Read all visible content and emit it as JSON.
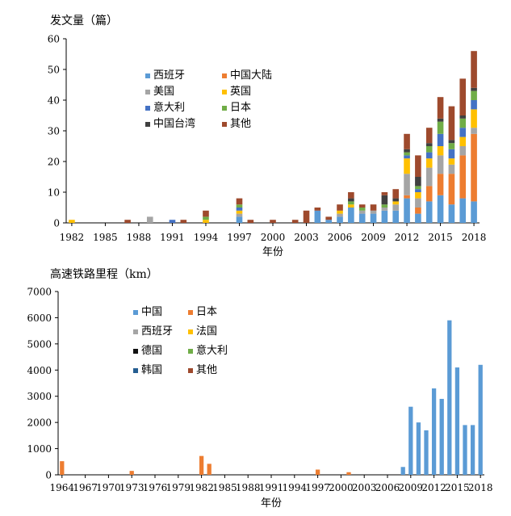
{
  "chart_data": [
    {
      "type": "bar",
      "title": "发文量（篇）",
      "xlabel": "年份",
      "ylabel": "发文量（篇）",
      "ylim": [
        0,
        60
      ],
      "yticks": [
        0,
        10,
        20,
        30,
        40,
        50,
        60
      ],
      "xtick_labels": [
        "1982",
        "1985",
        "1988",
        "1991",
        "1994",
        "1997",
        "2000",
        "2003",
        "2006",
        "2009",
        "2012",
        "2015",
        "2018"
      ],
      "legend_position": "top-center",
      "colors": {
        "西班牙": "#5b9bd5",
        "中国大陆": "#ed7d31",
        "美国": "#a5a5a5",
        "英国": "#ffc000",
        "意大利": "#4472c4",
        "日本": "#70ad47",
        "中国台湾": "#404040",
        "其他": "#9e4a2d"
      },
      "categories": [
        "1982",
        "1983",
        "1984",
        "1985",
        "1986",
        "1987",
        "1988",
        "1989",
        "1990",
        "1991",
        "1992",
        "1993",
        "1994",
        "1995",
        "1996",
        "1997",
        "1998",
        "1999",
        "2000",
        "2001",
        "2002",
        "2003",
        "2004",
        "2005",
        "2006",
        "2007",
        "2008",
        "2009",
        "2010",
        "2011",
        "2012",
        "2013",
        "2014",
        "2015",
        "2016",
        "2017",
        "2018"
      ],
      "series": [
        {
          "name": "西班牙",
          "values": [
            0,
            0,
            0,
            0,
            0,
            0,
            0,
            0,
            0,
            0,
            0,
            0,
            0,
            0,
            0,
            2,
            0,
            0,
            0,
            0,
            0,
            0,
            4,
            1,
            2,
            5,
            3,
            3,
            4,
            4,
            8,
            3,
            7,
            9,
            6,
            8,
            7
          ]
        },
        {
          "name": "中国大陆",
          "values": [
            0,
            0,
            0,
            0,
            0,
            0,
            0,
            0,
            0,
            0,
            0,
            0,
            0,
            0,
            0,
            0,
            0,
            0,
            0,
            0,
            0,
            0,
            0,
            0,
            0,
            0,
            0,
            0,
            0,
            0,
            1,
            2,
            5,
            7,
            10,
            14,
            22
          ]
        },
        {
          "name": "美国",
          "values": [
            0,
            0,
            0,
            0,
            0,
            0,
            0,
            2,
            0,
            0,
            0,
            0,
            0,
            0,
            0,
            1,
            0,
            0,
            0,
            0,
            0,
            0,
            0,
            0,
            1,
            0,
            1,
            1,
            1,
            2,
            7,
            3,
            6,
            6,
            3,
            3,
            2
          ]
        },
        {
          "name": "英国",
          "values": [
            1,
            0,
            0,
            0,
            0,
            0,
            0,
            0,
            0,
            0,
            0,
            0,
            1,
            0,
            0,
            1,
            0,
            0,
            0,
            0,
            0,
            0,
            0,
            0,
            1,
            1,
            0,
            0,
            0,
            1,
            5,
            2,
            3,
            3,
            2,
            3,
            6
          ]
        },
        {
          "name": "意大利",
          "values": [
            0,
            0,
            0,
            0,
            0,
            0,
            0,
            0,
            0,
            1,
            0,
            0,
            0,
            0,
            0,
            1,
            0,
            0,
            0,
            0,
            0,
            0,
            0,
            0,
            0,
            0,
            0,
            0,
            0,
            0,
            1,
            1,
            2,
            4,
            3,
            3,
            3
          ]
        },
        {
          "name": "日本",
          "values": [
            0,
            0,
            0,
            0,
            0,
            0,
            0,
            0,
            0,
            0,
            0,
            0,
            1,
            0,
            0,
            1,
            0,
            0,
            0,
            0,
            0,
            0,
            0,
            0,
            0,
            1,
            1,
            0,
            1,
            0,
            1,
            1,
            2,
            4,
            2,
            3,
            3
          ]
        },
        {
          "name": "中国台湾",
          "values": [
            0,
            0,
            0,
            0,
            0,
            0,
            0,
            0,
            0,
            0,
            0,
            0,
            0,
            0,
            0,
            0,
            0,
            0,
            0,
            0,
            0,
            0,
            0,
            0,
            0,
            1,
            0,
            0,
            3,
            1,
            1,
            3,
            1,
            1,
            1,
            1,
            1
          ]
        },
        {
          "name": "其他",
          "values": [
            0,
            0,
            0,
            0,
            0,
            1,
            0,
            0,
            0,
            0,
            1,
            0,
            2,
            0,
            0,
            2,
            1,
            0,
            1,
            0,
            1,
            4,
            1,
            1,
            2,
            2,
            1,
            2,
            1,
            3,
            5,
            7,
            5,
            7,
            11,
            12,
            12
          ]
        }
      ]
    },
    {
      "type": "bar",
      "title": "高速铁路里程（km）",
      "xlabel": "年份",
      "ylabel": "高速铁路里程（km）",
      "ylim": [
        0,
        7000
      ],
      "yticks": [
        0,
        1000,
        2000,
        3000,
        4000,
        5000,
        6000,
        7000
      ],
      "xtick_labels": [
        "1964",
        "1967",
        "1970",
        "1973",
        "1976",
        "1979",
        "1982",
        "1985",
        "1988",
        "1991",
        "1994",
        "1997",
        "2000",
        "2003",
        "2006",
        "2009",
        "2012",
        "2015",
        "2018"
      ],
      "legend_position": "top-center",
      "colors": {
        "中国": "#5b9bd5",
        "日本": "#ed7d31",
        "西班牙": "#a5a5a5",
        "法国": "#ffc000",
        "德国": "#111111",
        "意大利": "#70ad47",
        "韩国": "#255e91",
        "其他": "#9e4a2d"
      },
      "categories": [
        "1964",
        "1965",
        "1966",
        "1967",
        "1968",
        "1969",
        "1970",
        "1971",
        "1972",
        "1973",
        "1974",
        "1975",
        "1976",
        "1977",
        "1978",
        "1979",
        "1980",
        "1981",
        "1982",
        "1983",
        "1984",
        "1985",
        "1986",
        "1987",
        "1988",
        "1989",
        "1990",
        "1991",
        "1992",
        "1993",
        "1994",
        "1995",
        "1996",
        "1997",
        "1998",
        "1999",
        "2000",
        "2001",
        "2002",
        "2003",
        "2004",
        "2005",
        "2006",
        "2007",
        "2008",
        "2009",
        "2010",
        "2011",
        "2012",
        "2013",
        "2014",
        "2015",
        "2016",
        "2017",
        "2018"
      ],
      "series": [
        {
          "name": "中国",
          "values": [
            0,
            0,
            0,
            0,
            0,
            0,
            0,
            0,
            0,
            0,
            0,
            0,
            0,
            0,
            0,
            0,
            0,
            0,
            0,
            0,
            0,
            0,
            0,
            0,
            0,
            0,
            0,
            0,
            0,
            0,
            0,
            0,
            0,
            0,
            0,
            0,
            0,
            0,
            0,
            0,
            0,
            0,
            0,
            0,
            300,
            2600,
            2000,
            1700,
            3300,
            2900,
            5900,
            4100,
            1900,
            1900,
            4200
          ]
        },
        {
          "name": "日本",
          "values": [
            520,
            0,
            0,
            0,
            0,
            0,
            0,
            0,
            0,
            150,
            0,
            0,
            0,
            0,
            0,
            0,
            0,
            0,
            720,
            420,
            0,
            0,
            0,
            0,
            0,
            0,
            0,
            0,
            0,
            0,
            0,
            0,
            0,
            200,
            0,
            0,
            0,
            100,
            0,
            0,
            0,
            0,
            0,
            0,
            0,
            0,
            0,
            0,
            0,
            0,
            0,
            0,
            0,
            0,
            0
          ]
        },
        {
          "name": "西班牙",
          "values": [
            0,
            0,
            0,
            0,
            0,
            0,
            0,
            0,
            0,
            0,
            0,
            0,
            0,
            0,
            0,
            0,
            0,
            0,
            0,
            0,
            0,
            0,
            0,
            0,
            0,
            0,
            0,
            0,
            0,
            0,
            0,
            0,
            0,
            0,
            0,
            0,
            0,
            0,
            0,
            0,
            0,
            0,
            0,
            0,
            0,
            0,
            0,
            0,
            0,
            0,
            0,
            0,
            0,
            0,
            0
          ]
        },
        {
          "name": "法国",
          "values": [
            0,
            0,
            0,
            0,
            0,
            0,
            0,
            0,
            0,
            0,
            0,
            0,
            0,
            0,
            0,
            0,
            0,
            0,
            0,
            0,
            0,
            0,
            0,
            0,
            0,
            0,
            0,
            0,
            0,
            0,
            0,
            0,
            0,
            0,
            0,
            0,
            0,
            0,
            0,
            0,
            0,
            0,
            0,
            0,
            0,
            0,
            0,
            0,
            0,
            0,
            0,
            0,
            0,
            0,
            0
          ]
        },
        {
          "name": "德国",
          "values": [
            0,
            0,
            0,
            0,
            0,
            0,
            0,
            0,
            0,
            0,
            0,
            0,
            0,
            0,
            0,
            0,
            0,
            0,
            0,
            0,
            0,
            0,
            0,
            0,
            0,
            0,
            0,
            0,
            0,
            0,
            0,
            0,
            0,
            0,
            0,
            0,
            0,
            0,
            0,
            0,
            0,
            0,
            0,
            0,
            0,
            0,
            0,
            0,
            0,
            0,
            0,
            0,
            0,
            0,
            0
          ]
        },
        {
          "name": "意大利",
          "values": [
            0,
            0,
            0,
            0,
            0,
            0,
            0,
            0,
            0,
            0,
            0,
            0,
            0,
            0,
            0,
            0,
            0,
            0,
            0,
            0,
            0,
            0,
            0,
            0,
            0,
            0,
            0,
            0,
            0,
            0,
            0,
            0,
            0,
            0,
            0,
            0,
            0,
            0,
            0,
            0,
            0,
            0,
            0,
            0,
            0,
            0,
            0,
            0,
            0,
            0,
            0,
            0,
            0,
            0,
            0
          ]
        },
        {
          "name": "韩国",
          "values": [
            0,
            0,
            0,
            0,
            0,
            0,
            0,
            0,
            0,
            0,
            0,
            0,
            0,
            0,
            0,
            0,
            0,
            0,
            0,
            0,
            0,
            0,
            0,
            0,
            0,
            0,
            0,
            0,
            0,
            0,
            0,
            0,
            0,
            0,
            0,
            0,
            0,
            0,
            0,
            0,
            0,
            0,
            0,
            0,
            0,
            0,
            0,
            0,
            0,
            0,
            0,
            0,
            0,
            0,
            0
          ]
        },
        {
          "name": "其他",
          "values": [
            0,
            0,
            0,
            0,
            0,
            0,
            0,
            0,
            0,
            0,
            0,
            0,
            0,
            0,
            0,
            0,
            0,
            0,
            0,
            0,
            0,
            0,
            0,
            0,
            0,
            0,
            0,
            0,
            0,
            0,
            0,
            0,
            0,
            0,
            0,
            0,
            0,
            0,
            0,
            0,
            0,
            0,
            0,
            0,
            0,
            0,
            0,
            0,
            0,
            0,
            0,
            0,
            0,
            0,
            0
          ]
        }
      ]
    }
  ]
}
